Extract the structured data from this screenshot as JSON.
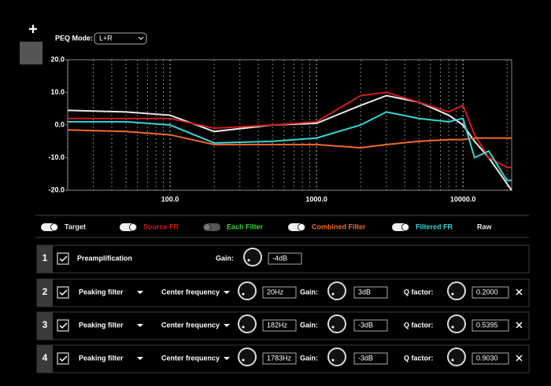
{
  "top": {
    "add_button": "+",
    "peq_mode_label": "PEQ Mode:",
    "peq_mode_value": "L+R"
  },
  "chart_data": {
    "type": "line",
    "xscale": "log",
    "grid": true,
    "xlim": [
      20,
      21500
    ],
    "ylim": [
      -20,
      20
    ],
    "xticks": [
      {
        "value": 100,
        "label": "100.0"
      },
      {
        "value": 1000,
        "label": "1000.0"
      },
      {
        "value": 10000,
        "label": "10000.0"
      }
    ],
    "x_minor_ticks": [
      20,
      30,
      40,
      50,
      60,
      70,
      80,
      90,
      200,
      300,
      400,
      500,
      600,
      700,
      800,
      900,
      2000,
      3000,
      4000,
      5000,
      6000,
      7000,
      8000,
      9000,
      20000
    ],
    "yticks": [
      {
        "value": -20,
        "label": "-20.0"
      },
      {
        "value": -10,
        "label": "-10.0"
      },
      {
        "value": 0,
        "label": "0.0"
      },
      {
        "value": 10,
        "label": "10.0"
      },
      {
        "value": 20,
        "label": "20.0"
      }
    ],
    "x": [
      20,
      50,
      100,
      200,
      500,
      1000,
      2000,
      3000,
      5000,
      8000,
      10000,
      12000,
      15000,
      20000,
      21500
    ],
    "series": [
      {
        "name": "Target",
        "color": "#e8e8e8",
        "enabled": true,
        "values": [
          4.5,
          4,
          3,
          -2,
          0,
          0.5,
          6,
          9,
          7,
          3,
          0,
          -5,
          -10,
          -18,
          -20
        ]
      },
      {
        "name": "Source FR",
        "color": "#d01c1c",
        "enabled": true,
        "values": [
          2,
          2,
          2,
          -1,
          0,
          1,
          9,
          10,
          7,
          4,
          6,
          -3,
          -10,
          -13,
          -13
        ]
      },
      {
        "name": "Combined Filter",
        "color": "#f06a2a",
        "enabled": true,
        "values": [
          -1.5,
          -2,
          -3,
          -6,
          -6,
          -6,
          -7,
          -6,
          -5,
          -4.5,
          -4.5,
          -4,
          -4,
          -4,
          -4
        ]
      },
      {
        "name": "Filtered FR",
        "color": "#33d6d6",
        "enabled": true,
        "values": [
          1,
          1,
          0,
          -5.5,
          -5,
          -4,
          0,
          4,
          2,
          1,
          2,
          -10,
          -8,
          -17,
          -17
        ]
      }
    ],
    "legend_extras": [
      {
        "label": "Each Filter",
        "color": "#3bd13b",
        "on": false
      },
      {
        "label": "Raw",
        "color": "#e8e8e8"
      }
    ]
  },
  "filters": [
    {
      "index": 1,
      "enabled": true,
      "type": "Preamplification",
      "gain_label": "Gain:",
      "gain": "-4dB"
    },
    {
      "index": 2,
      "enabled": true,
      "type": "Peaking filter",
      "freq_label": "Center frequency",
      "freq": "20Hz",
      "gain_label": "Gain:",
      "gain": "3dB",
      "q_label": "Q factor:",
      "q": "0.2000"
    },
    {
      "index": 3,
      "enabled": true,
      "type": "Peaking filter",
      "freq_label": "Center frequency",
      "freq": "182Hz",
      "gain_label": "Gain:",
      "gain": "-3dB",
      "q_label": "Q factor:",
      "q": "0.5395"
    },
    {
      "index": 4,
      "enabled": true,
      "type": "Peaking filter",
      "freq_label": "Center frequency",
      "freq": "1783Hz",
      "gain_label": "Gain:",
      "gain": "-3dB",
      "q_label": "Q factor:",
      "q": "0.9030"
    }
  ]
}
